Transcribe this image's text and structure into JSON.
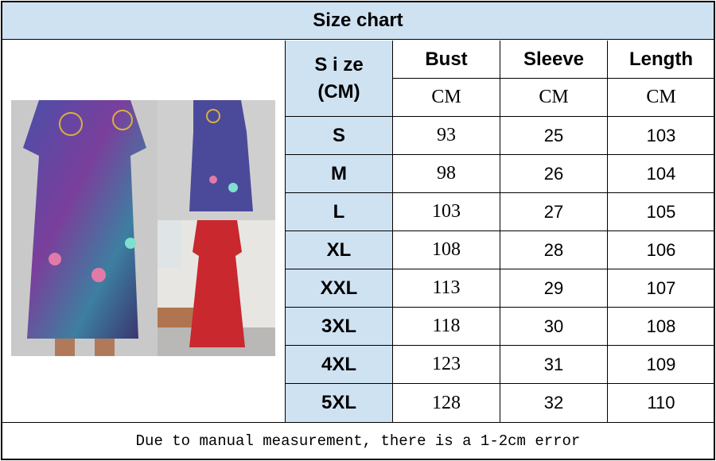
{
  "title": "Size chart",
  "table": {
    "size_header_line1": "S i ze",
    "size_header_line2": "(CM)",
    "columns": [
      {
        "label": "Bust",
        "unit": "CM"
      },
      {
        "label": "Sleeve",
        "unit": "CM"
      },
      {
        "label": "Length",
        "unit": "CM"
      }
    ],
    "rows": [
      {
        "size": "S",
        "bust": "93",
        "sleeve": "25",
        "length": "103"
      },
      {
        "size": "M",
        "bust": "98",
        "sleeve": "26",
        "length": "104"
      },
      {
        "size": "L",
        "bust": "103",
        "sleeve": "27",
        "length": "105"
      },
      {
        "size": "XL",
        "bust": "108",
        "sleeve": "28",
        "length": "106"
      },
      {
        "size": "XXL",
        "bust": "113",
        "sleeve": "29",
        "length": "107"
      },
      {
        "size": "3XL",
        "bust": "118",
        "sleeve": "30",
        "length": "108"
      },
      {
        "size": "4XL",
        "bust": "123",
        "sleeve": "31",
        "length": "109"
      },
      {
        "size": "5XL",
        "bust": "128",
        "sleeve": "32",
        "length": "110"
      }
    ]
  },
  "footer": "Due to manual measurement, there is a 1-2cm error",
  "colors": {
    "header_bg": "#cfe2f2",
    "border": "#000000"
  }
}
